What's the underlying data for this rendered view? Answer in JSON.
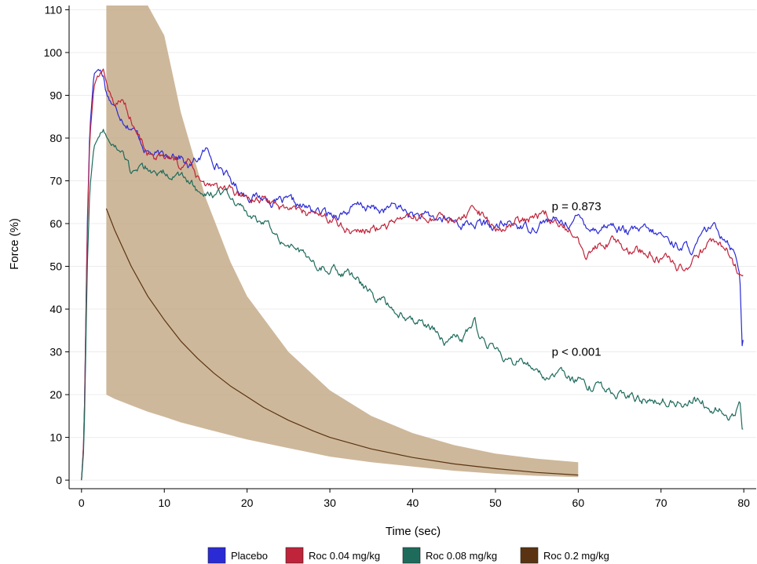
{
  "chart_data": {
    "type": "line",
    "xlabel": "Time (sec)",
    "ylabel": "Force (%)",
    "xlim": [
      -1.5,
      81.5
    ],
    "ylim": [
      -2,
      111
    ],
    "x_ticks": [
      0,
      10,
      20,
      30,
      40,
      50,
      60,
      70,
      80
    ],
    "y_ticks": [
      0,
      10,
      20,
      30,
      40,
      50,
      60,
      70,
      80,
      90,
      100,
      110
    ],
    "grid": "horizontal",
    "legend_position": "bottom",
    "annotations": [
      {
        "text": "p = 0.873",
        "x": 56.8,
        "y": 64
      },
      {
        "text": "p < 0.001",
        "x": 56.8,
        "y": 30
      }
    ],
    "band": {
      "name": "Roc 0.2 mg/kg",
      "color": "#c6ab8a",
      "x": [
        3,
        4,
        6,
        8,
        10,
        12,
        15,
        18,
        20,
        25,
        30,
        35,
        40,
        45,
        50,
        55,
        60
      ],
      "lower": [
        20,
        19,
        17.5,
        16,
        14.8,
        13.5,
        12,
        10.5,
        9.5,
        7.5,
        5.5,
        4.2,
        3.2,
        2.2,
        1.5,
        1.0,
        0.7
      ],
      "upper": [
        111,
        111,
        111,
        111,
        104,
        86,
        66,
        51,
        43,
        30,
        21,
        15,
        11,
        8.2,
        6.2,
        5.0,
        4.2
      ]
    },
    "series": [
      {
        "name": "Placebo",
        "color": "#2b2bd6",
        "x": [
          0,
          0.3,
          0.7,
          1.0,
          1.5,
          2.0,
          2.6,
          3.0,
          4,
          5,
          6,
          7,
          8,
          9,
          10,
          11,
          12,
          13,
          14,
          15,
          16,
          17,
          18,
          19,
          20,
          22,
          24,
          26,
          28,
          30,
          32,
          34,
          36,
          38,
          40,
          42,
          44,
          46,
          48,
          50,
          52,
          54,
          56,
          58,
          60,
          62,
          64,
          66,
          68,
          70,
          72,
          74,
          76,
          77,
          78,
          79,
          79.5,
          79.8,
          80
        ],
        "y": [
          0,
          10,
          60,
          82,
          95,
          96,
          95,
          91,
          87,
          85,
          83,
          80,
          77,
          76,
          75,
          77,
          76,
          73,
          75,
          77,
          75,
          73,
          70,
          68,
          67,
          66,
          65,
          64,
          63,
          62,
          63,
          64,
          63,
          64,
          62,
          61,
          61,
          60,
          60,
          59,
          60,
          59,
          61,
          60,
          61,
          59,
          60,
          58,
          58,
          57,
          55,
          54,
          59,
          58,
          57,
          53,
          50,
          33,
          34
        ]
      },
      {
        "name": "Roc 0.04 mg/kg",
        "color": "#c0243a",
        "x": [
          0,
          0.3,
          0.7,
          1.0,
          1.5,
          2.0,
          2.6,
          3.0,
          4,
          5,
          6,
          7,
          8,
          9,
          10,
          11,
          12,
          13,
          14,
          15,
          16,
          17,
          18,
          19,
          20,
          22,
          24,
          26,
          28,
          30,
          32,
          34,
          36,
          38,
          40,
          42,
          44,
          46,
          48,
          50,
          52,
          54,
          56,
          58,
          60,
          61,
          62,
          64,
          66,
          68,
          70,
          72,
          74,
          76,
          78,
          79,
          79.5,
          80
        ],
        "y": [
          0,
          10,
          58,
          80,
          92,
          95,
          96,
          93,
          88,
          89,
          85,
          80,
          77,
          75,
          75,
          74,
          73,
          74,
          70,
          68,
          69,
          67,
          67,
          66,
          66,
          65,
          64,
          63,
          62,
          61,
          59,
          58,
          59,
          60,
          60,
          61,
          60,
          61,
          62,
          58,
          60,
          61,
          62,
          59,
          57,
          52,
          55,
          56,
          54,
          53,
          52,
          50,
          51,
          55,
          54,
          50,
          47,
          46
        ]
      },
      {
        "name": "Roc 0.08 mg/kg",
        "color": "#1e6b5c",
        "x": [
          0,
          0.3,
          0.7,
          1.0,
          1.5,
          2.0,
          2.6,
          3.0,
          4,
          5,
          6,
          7,
          8,
          9,
          10,
          11,
          12,
          13,
          14,
          15,
          16,
          17,
          18,
          19,
          20,
          22,
          24,
          26,
          28,
          30,
          32,
          34,
          36,
          38,
          40,
          42,
          44,
          46,
          47.5,
          48,
          50,
          52,
          54,
          56,
          58,
          60,
          62,
          64,
          66,
          68,
          70,
          72,
          74,
          76,
          78,
          79,
          79.5,
          79.8,
          80
        ],
        "y": [
          0,
          8,
          50,
          68,
          78,
          80,
          82,
          80,
          78,
          76,
          71,
          74,
          73,
          72,
          72,
          72,
          70,
          70,
          68,
          66,
          67,
          67,
          66,
          64,
          62,
          60,
          57,
          54,
          50,
          50,
          48,
          45,
          42,
          40,
          38,
          36,
          33,
          33,
          37,
          34,
          30,
          28,
          27,
          25,
          24,
          23,
          22,
          21,
          20,
          19,
          19,
          18,
          19,
          17,
          16,
          15,
          18,
          12,
          13
        ]
      },
      {
        "name": "Roc 0.2 mg/kg",
        "color": "#5a3412",
        "x": [
          3,
          4,
          6,
          8,
          10,
          12,
          14,
          16,
          18,
          20,
          22,
          25,
          28,
          30,
          35,
          40,
          45,
          50,
          55,
          60
        ],
        "y": [
          63.5,
          58.5,
          50,
          43,
          37.5,
          32.5,
          28.5,
          25,
          22,
          19.5,
          17,
          14,
          11.5,
          10,
          7.3,
          5.3,
          3.8,
          2.7,
          1.8,
          1.2
        ]
      }
    ]
  }
}
